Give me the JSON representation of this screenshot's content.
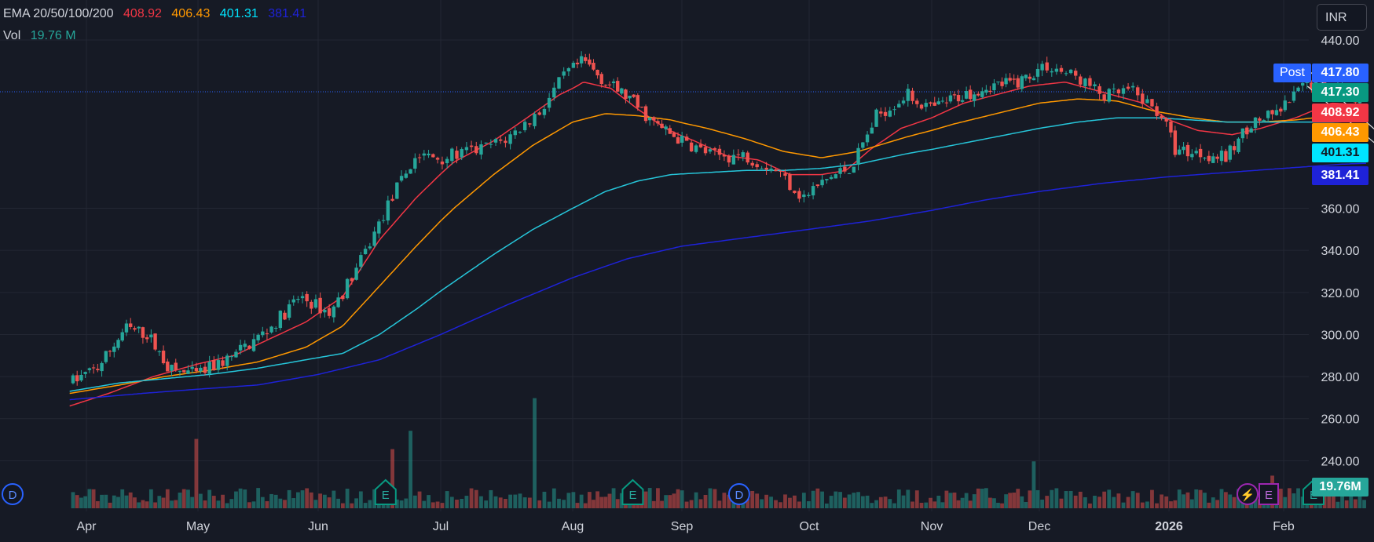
{
  "legend": {
    "ema_label": "EMA 20/50/100/200",
    "ema_values": [
      "408.92",
      "406.43",
      "401.31",
      "381.41"
    ],
    "ema_colors": [
      "#f23645",
      "#ff9800",
      "#00e5ff",
      "#1e22d8"
    ],
    "vol_label": "Vol",
    "vol_value": "19.76 M"
  },
  "currency_button": "INR",
  "post_badge": "Post",
  "price_labels": [
    {
      "value": "417.80",
      "bg": "#2962ff",
      "fg": "#ffffff"
    },
    {
      "value": "417.30",
      "bg": "#089981",
      "fg": "#ffffff"
    },
    {
      "value": "408.92",
      "bg": "#f23645",
      "fg": "#ffffff"
    },
    {
      "value": "406.43",
      "bg": "#ff9800",
      "fg": "#ffffff"
    },
    {
      "value": "401.31",
      "bg": "#00e5ff",
      "fg": "#131722"
    },
    {
      "value": "381.41",
      "bg": "#1e22d8",
      "fg": "#ffffff"
    }
  ],
  "volume_label": {
    "value": "19.76M",
    "bg": "#26a69a"
  },
  "event_markers": [
    {
      "letter": "D",
      "type": "dividend",
      "month_pos": 0.04
    },
    {
      "letter": "E",
      "type": "earnings",
      "month_pos": 2.55
    },
    {
      "letter": "E",
      "type": "earnings",
      "month_pos": 4.55
    },
    {
      "letter": "D",
      "type": "dividend",
      "month_pos": 5.45
    },
    {
      "letter": "E",
      "type": "earnings",
      "month_pos": 10.25
    }
  ],
  "chart_data": {
    "type": "candlestick",
    "x_ticks": [
      "Apr",
      "May",
      "Jun",
      "Jul",
      "Aug",
      "Sep",
      "Oct",
      "Nov",
      "Dec",
      "2026",
      "Feb"
    ],
    "y_ticks": [
      "440.00",
      "360.00",
      "340.00",
      "320.00",
      "300.00",
      "280.00",
      "260.00",
      "240.00"
    ],
    "ylim": [
      240,
      440
    ],
    "last_close": 417.3,
    "post_price": 417.8,
    "grid": true,
    "price_path": [
      [
        -0.15,
        277
      ],
      [
        0.1,
        284
      ],
      [
        0.35,
        303
      ],
      [
        0.55,
        300
      ],
      [
        0.75,
        283
      ],
      [
        1.0,
        281
      ],
      [
        1.3,
        290
      ],
      [
        1.6,
        303
      ],
      [
        1.85,
        318
      ],
      [
        2.1,
        310
      ],
      [
        2.35,
        335
      ],
      [
        2.6,
        365
      ],
      [
        2.8,
        385
      ],
      [
        3.0,
        384
      ],
      [
        3.3,
        388
      ],
      [
        3.5,
        393
      ],
      [
        3.75,
        406
      ],
      [
        3.95,
        424
      ],
      [
        4.1,
        430
      ],
      [
        4.3,
        420
      ],
      [
        4.5,
        413
      ],
      [
        4.75,
        400
      ],
      [
        5.0,
        392
      ],
      [
        5.25,
        385
      ],
      [
        5.5,
        385
      ],
      [
        5.75,
        378
      ],
      [
        5.95,
        365
      ],
      [
        6.15,
        374
      ],
      [
        6.35,
        380
      ],
      [
        6.55,
        404
      ],
      [
        6.8,
        414
      ],
      [
        7.0,
        407
      ],
      [
        7.2,
        412
      ],
      [
        7.5,
        418
      ],
      [
        7.8,
        420
      ],
      [
        8.05,
        428
      ],
      [
        8.3,
        422
      ],
      [
        8.5,
        413
      ],
      [
        8.7,
        416
      ],
      [
        8.95,
        404
      ],
      [
        9.05,
        388
      ],
      [
        9.3,
        386
      ],
      [
        9.5,
        384
      ],
      [
        9.7,
        400
      ],
      [
        9.95,
        405
      ],
      [
        10.2,
        420
      ],
      [
        10.45,
        418
      ],
      [
        10.6,
        413
      ],
      [
        10.7,
        417.3
      ]
    ],
    "ema_series": [
      {
        "name": "EMA 20",
        "color": "#f23645",
        "points": [
          [
            -0.15,
            266
          ],
          [
            0.2,
            272
          ],
          [
            0.6,
            280
          ],
          [
            1.0,
            286
          ],
          [
            1.3,
            290
          ],
          [
            1.6,
            298
          ],
          [
            1.9,
            306
          ],
          [
            2.2,
            318
          ],
          [
            2.5,
            345
          ],
          [
            2.8,
            365
          ],
          [
            3.1,
            382
          ],
          [
            3.4,
            392
          ],
          [
            3.7,
            405
          ],
          [
            3.9,
            414
          ],
          [
            4.1,
            420
          ],
          [
            4.35,
            417
          ],
          [
            4.6,
            407
          ],
          [
            4.85,
            398
          ],
          [
            5.1,
            392
          ],
          [
            5.35,
            385
          ],
          [
            5.6,
            383
          ],
          [
            5.85,
            376
          ],
          [
            6.1,
            376
          ],
          [
            6.3,
            378
          ],
          [
            6.5,
            388
          ],
          [
            6.75,
            398
          ],
          [
            7.0,
            403
          ],
          [
            7.3,
            410
          ],
          [
            7.6,
            414
          ],
          [
            7.9,
            418
          ],
          [
            8.2,
            420
          ],
          [
            8.5,
            415
          ],
          [
            8.8,
            410
          ],
          [
            9.0,
            402
          ],
          [
            9.25,
            397
          ],
          [
            9.55,
            395
          ],
          [
            9.8,
            398
          ],
          [
            10.1,
            403
          ],
          [
            10.4,
            410
          ],
          [
            10.7,
            408.92
          ]
        ]
      },
      {
        "name": "EMA 50",
        "color": "#ff9800",
        "points": [
          [
            -0.15,
            272
          ],
          [
            0.3,
            276
          ],
          [
            0.7,
            280
          ],
          [
            1.1,
            283
          ],
          [
            1.5,
            287
          ],
          [
            1.9,
            294
          ],
          [
            2.2,
            304
          ],
          [
            2.5,
            323
          ],
          [
            2.8,
            342
          ],
          [
            3.1,
            360
          ],
          [
            3.4,
            376
          ],
          [
            3.7,
            390
          ],
          [
            4.0,
            401
          ],
          [
            4.3,
            405
          ],
          [
            4.6,
            404
          ],
          [
            4.9,
            402
          ],
          [
            5.2,
            398
          ],
          [
            5.5,
            393
          ],
          [
            5.8,
            387
          ],
          [
            6.1,
            384
          ],
          [
            6.4,
            387
          ],
          [
            6.8,
            394
          ],
          [
            7.2,
            400
          ],
          [
            7.6,
            405
          ],
          [
            8.0,
            410
          ],
          [
            8.3,
            412
          ],
          [
            8.6,
            411
          ],
          [
            8.9,
            406
          ],
          [
            9.2,
            403
          ],
          [
            9.5,
            401
          ],
          [
            9.8,
            401
          ],
          [
            10.1,
            402
          ],
          [
            10.4,
            404
          ],
          [
            10.7,
            406.43
          ]
        ]
      },
      {
        "name": "EMA 100",
        "color": "#26c6da",
        "points": [
          [
            -0.15,
            273
          ],
          [
            0.3,
            277
          ],
          [
            0.7,
            279
          ],
          [
            1.1,
            281
          ],
          [
            1.5,
            284
          ],
          [
            1.9,
            288
          ],
          [
            2.2,
            291
          ],
          [
            2.5,
            300
          ],
          [
            2.8,
            312
          ],
          [
            3.1,
            325
          ],
          [
            3.4,
            338
          ],
          [
            3.7,
            350
          ],
          [
            4.0,
            360
          ],
          [
            4.3,
            368
          ],
          [
            4.6,
            373
          ],
          [
            4.9,
            376
          ],
          [
            5.2,
            377
          ],
          [
            5.5,
            378
          ],
          [
            5.8,
            378
          ],
          [
            6.1,
            379
          ],
          [
            6.4,
            381
          ],
          [
            6.8,
            386
          ],
          [
            7.2,
            390
          ],
          [
            7.6,
            394
          ],
          [
            8.0,
            398
          ],
          [
            8.3,
            401
          ],
          [
            8.6,
            403
          ],
          [
            8.9,
            403
          ],
          [
            9.2,
            402
          ],
          [
            9.5,
            401
          ],
          [
            9.8,
            401
          ],
          [
            10.1,
            401
          ],
          [
            10.4,
            401
          ],
          [
            10.7,
            401.31
          ]
        ]
      },
      {
        "name": "EMA 200",
        "color": "#1e22d8",
        "points": [
          [
            -0.15,
            269
          ],
          [
            0.5,
            272
          ],
          [
            1.0,
            274
          ],
          [
            1.5,
            276
          ],
          [
            2.0,
            281
          ],
          [
            2.5,
            288
          ],
          [
            3.0,
            300
          ],
          [
            3.5,
            314
          ],
          [
            4.0,
            327
          ],
          [
            4.5,
            336
          ],
          [
            5.0,
            342
          ],
          [
            5.5,
            346
          ],
          [
            6.0,
            350
          ],
          [
            6.5,
            354
          ],
          [
            7.0,
            359
          ],
          [
            7.5,
            364
          ],
          [
            8.0,
            368
          ],
          [
            8.5,
            372
          ],
          [
            9.0,
            375
          ],
          [
            9.5,
            377
          ],
          [
            10.0,
            379
          ],
          [
            10.5,
            381
          ],
          [
            10.7,
            381.41
          ]
        ]
      }
    ],
    "channel_lines": [
      {
        "from": [
          10.2,
          426
        ],
        "to": [
          10.95,
          388
        ]
      },
      {
        "from": [
          10.2,
          418
        ],
        "to": [
          10.95,
          382
        ]
      }
    ],
    "volume_spikes": [
      [
        1.0,
        34
      ],
      [
        2.6,
        29
      ],
      [
        2.75,
        38
      ],
      [
        3.7,
        54
      ],
      [
        7.95,
        23
      ],
      [
        9.9,
        16
      ]
    ]
  }
}
